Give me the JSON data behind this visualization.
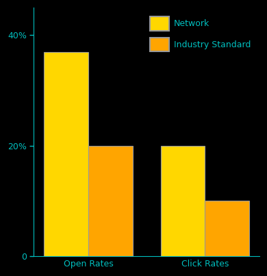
{
  "categories": [
    "Open Rates",
    "Click Rates"
  ],
  "network_values": [
    37,
    20
  ],
  "industry_values": [
    20,
    10
  ],
  "network_color": "#FFD700",
  "industry_color": "#FFA500",
  "bar_edge_color": "#999999",
  "background_color": "#000000",
  "axis_color": "#00BFBF",
  "text_color": "#00BFBF",
  "legend_network": "Network",
  "legend_industry": "Industry Standard",
  "yticks": [
    0,
    20,
    40
  ],
  "ytick_labels": [
    "0",
    "20%",
    "40%"
  ],
  "ylim": [
    0,
    45
  ],
  "bar_width": 0.38,
  "figsize": [
    3.9,
    4.03
  ]
}
